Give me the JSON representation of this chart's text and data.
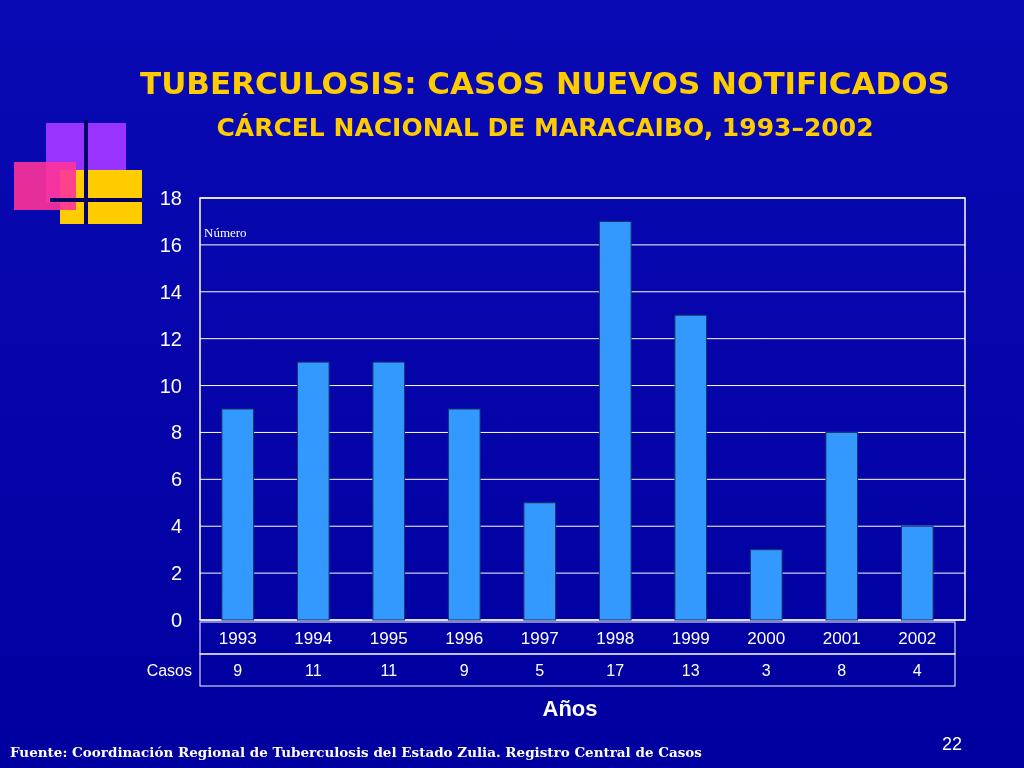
{
  "chart_data": {
    "type": "bar",
    "title": "TUBERCULOSIS: CASOS NUEVOS NOTIFICADOS",
    "subtitle": "CÁRCEL NACIONAL DE MARACAIBO, 1993–2002",
    "xlabel": "Años",
    "ylabel": "Número",
    "categories": [
      "1993",
      "1994",
      "1995",
      "1996",
      "1997",
      "1998",
      "1999",
      "2000",
      "2001",
      "2002"
    ],
    "series": [
      {
        "name": "Casos",
        "color": "#3399ff",
        "values": [
          9,
          11,
          11,
          9,
          5,
          17,
          13,
          3,
          8,
          4
        ]
      }
    ],
    "ylim": [
      0,
      18
    ],
    "yticks": [
      0,
      2,
      4,
      6,
      8,
      10,
      12,
      14,
      16,
      18
    ],
    "grid": "y",
    "data_labels": true,
    "annotations": [
      "Fuente: Coordinación Regional de Tuberculosis del Estado Zulia. Registro Central de Casos",
      "22"
    ]
  }
}
